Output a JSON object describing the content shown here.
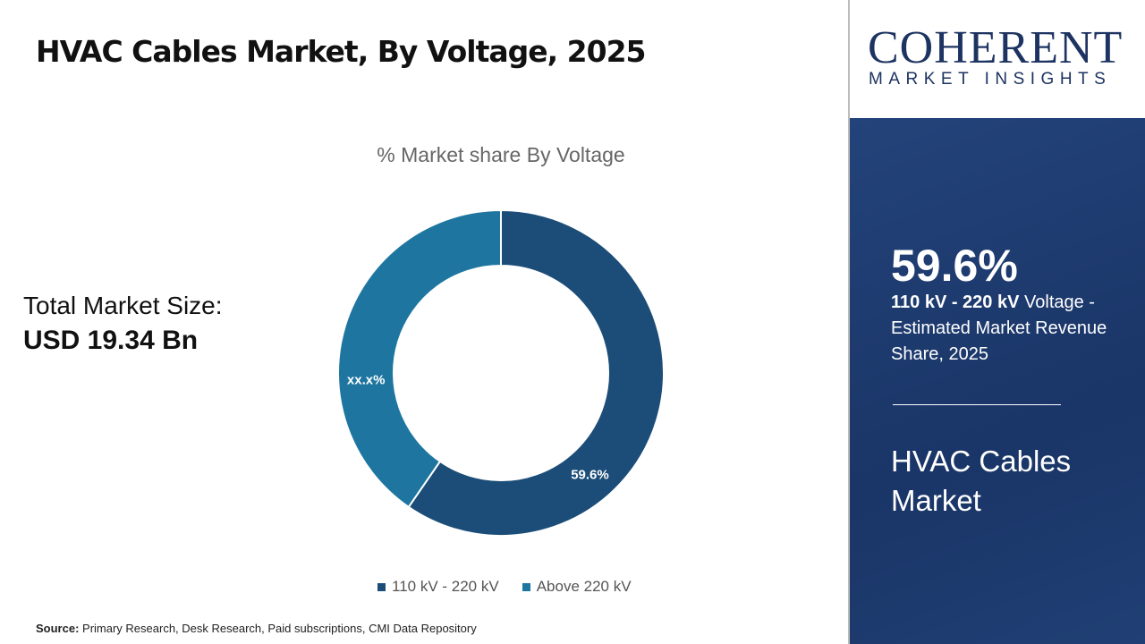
{
  "header": {
    "title": "HVAC Cables Market, By Voltage, 2025"
  },
  "summary": {
    "label": "Total Market Size:",
    "value": "USD 19.34 Bn"
  },
  "chart_data": {
    "type": "pie",
    "donut": true,
    "title": "% Market share By Voltage",
    "categories": [
      "110 kV - 220 kV",
      "Above 220 kV"
    ],
    "values": [
      59.6,
      40.4
    ],
    "data_labels": [
      "59.6%",
      "xx.x%"
    ],
    "colors": [
      "#1b4d78",
      "#1e76a0"
    ],
    "legend": "bottom"
  },
  "source": {
    "label": "Source:",
    "text": " Primary Research, Desk Research, Paid subscriptions, CMI Data Repository"
  },
  "logo": {
    "line1": "COHERENT",
    "line2": "MARKET INSIGHTS"
  },
  "panel": {
    "percent": "59.6%",
    "segment": "110 kV - 220 kV",
    "desc": " Voltage - Estimated Market Revenue Share, 2025",
    "market": "HVAC Cables Market"
  }
}
